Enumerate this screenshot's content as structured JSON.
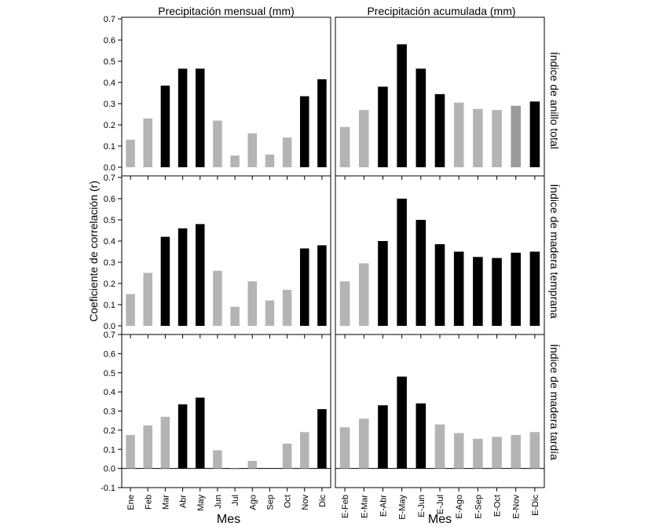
{
  "figure": {
    "ylabel": "Coeficiente de correlación (r)",
    "col_titles": [
      "Precipitación mensual (mm)",
      "Precipitación acumulada (mm)"
    ],
    "row_labels": [
      "Índice de anillo total",
      "Índice de madera temprana",
      "Índice de madera tardía"
    ],
    "xlabels": [
      "Mes",
      "Mes"
    ]
  },
  "colors": {
    "significant": "#000000",
    "nonsignificant": "#b4b4b4",
    "alt_gray": "#9a9a9a"
  },
  "chart_data": [
    {
      "type": "bar",
      "row": 0,
      "col": 0,
      "categories": [
        "Ene",
        "Feb",
        "Mar",
        "Abr",
        "May",
        "Jun",
        "Jul",
        "Ago",
        "Sep",
        "Oct",
        "Nov",
        "Dic"
      ],
      "values": [
        0.13,
        0.23,
        0.385,
        0.465,
        0.465,
        0.22,
        0.055,
        0.16,
        0.06,
        0.14,
        0.335,
        0.415
      ],
      "significant": [
        false,
        false,
        true,
        true,
        true,
        false,
        false,
        false,
        false,
        false,
        true,
        true
      ],
      "ylim": [
        0,
        0.7
      ],
      "yticks": [
        "0.0",
        "0.1",
        "0.2",
        "0.3",
        "0.4",
        "0.5",
        "0.6",
        "0.7"
      ]
    },
    {
      "type": "bar",
      "row": 0,
      "col": 1,
      "categories": [
        "E-Feb",
        "E-Mar",
        "E-Abr",
        "E-May",
        "E-Jun",
        "E-Jul",
        "E-Ago",
        "E-Sep",
        "E-Oct",
        "E-Nov",
        "E-Dic"
      ],
      "values": [
        0.19,
        0.27,
        0.38,
        0.58,
        0.465,
        0.345,
        0.305,
        0.275,
        0.27,
        0.29,
        0.31
      ],
      "significant": [
        false,
        false,
        true,
        true,
        true,
        true,
        false,
        false,
        false,
        false,
        true
      ],
      "ylim": [
        0,
        0.7
      ]
    },
    {
      "type": "bar",
      "row": 1,
      "col": 0,
      "categories": [
        "Ene",
        "Feb",
        "Mar",
        "Abr",
        "May",
        "Jun",
        "Jul",
        "Ago",
        "Sep",
        "Oct",
        "Nov",
        "Dic"
      ],
      "values": [
        0.15,
        0.25,
        0.42,
        0.46,
        0.48,
        0.26,
        0.09,
        0.21,
        0.12,
        0.17,
        0.365,
        0.38
      ],
      "significant": [
        false,
        false,
        true,
        true,
        true,
        false,
        false,
        false,
        false,
        false,
        true,
        true
      ],
      "ylim": [
        0,
        0.7
      ],
      "yticks": [
        "0.0",
        "0.1",
        "0.2",
        "0.3",
        "0.4",
        "0.5",
        "0.6",
        "0.7"
      ]
    },
    {
      "type": "bar",
      "row": 1,
      "col": 1,
      "categories": [
        "E-Feb",
        "E-Mar",
        "E-Abr",
        "E-May",
        "E-Jun",
        "E-Jul",
        "E-Ago",
        "E-Sep",
        "E-Oct",
        "E-Nov",
        "E-Dic"
      ],
      "values": [
        0.21,
        0.295,
        0.4,
        0.6,
        0.5,
        0.385,
        0.35,
        0.325,
        0.32,
        0.345,
        0.35
      ],
      "significant": [
        false,
        false,
        true,
        true,
        true,
        true,
        true,
        true,
        true,
        true,
        true
      ],
      "ylim": [
        0,
        0.7
      ]
    },
    {
      "type": "bar",
      "row": 2,
      "col": 0,
      "categories": [
        "Ene",
        "Feb",
        "Mar",
        "Abr",
        "May",
        "Jun",
        "Jul",
        "Ago",
        "Sep",
        "Oct",
        "Nov",
        "Dic"
      ],
      "values": [
        0.175,
        0.225,
        0.27,
        0.335,
        0.37,
        0.095,
        -0.005,
        0.04,
        0.0,
        0.13,
        0.19,
        0.31
      ],
      "significant": [
        false,
        false,
        false,
        true,
        true,
        false,
        false,
        false,
        false,
        false,
        false,
        true
      ],
      "ylim": [
        -0.1,
        0.7
      ],
      "yticks": [
        "-0.1",
        "0.0",
        "0.1",
        "0.2",
        "0.3",
        "0.4",
        "0.5",
        "0.6",
        "0.7"
      ]
    },
    {
      "type": "bar",
      "row": 2,
      "col": 1,
      "categories": [
        "E-Feb",
        "E-Mar",
        "E-Abr",
        "E-May",
        "E-Jun",
        "E-Jul",
        "E-Ago",
        "E-Sep",
        "E-Oct",
        "E-Nov",
        "E-Dic"
      ],
      "values": [
        0.215,
        0.26,
        0.33,
        0.48,
        0.34,
        0.23,
        0.185,
        0.155,
        0.165,
        0.175,
        0.19
      ],
      "significant": [
        false,
        false,
        true,
        true,
        true,
        false,
        false,
        false,
        false,
        false,
        false
      ],
      "ylim": [
        -0.1,
        0.7
      ]
    }
  ]
}
